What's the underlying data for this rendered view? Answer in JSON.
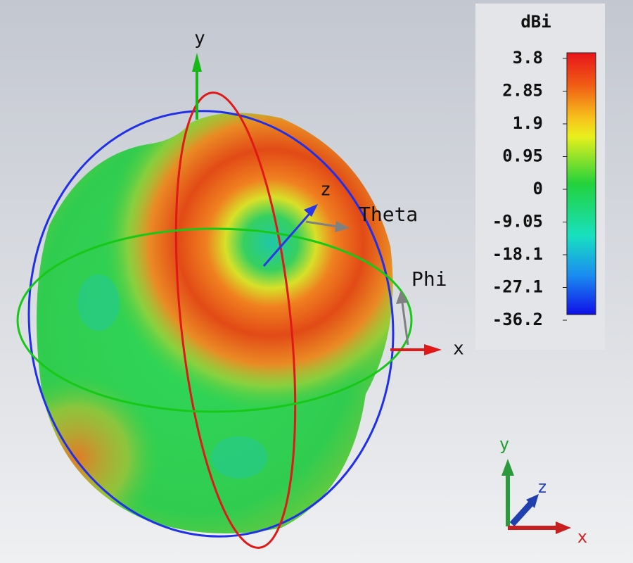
{
  "axes": {
    "y": "y",
    "z": "z",
    "x": "x"
  },
  "angles": {
    "theta": "Theta",
    "phi": "Phi"
  },
  "triad": {
    "y": "y",
    "z": "z",
    "x": "x"
  },
  "colorbar": {
    "title": "dBi",
    "ticks": [
      "3.8",
      "2.85",
      "1.9",
      "0.95",
      "0",
      "-9.05",
      "-18.1",
      "-27.1",
      "-36.2"
    ]
  }
}
